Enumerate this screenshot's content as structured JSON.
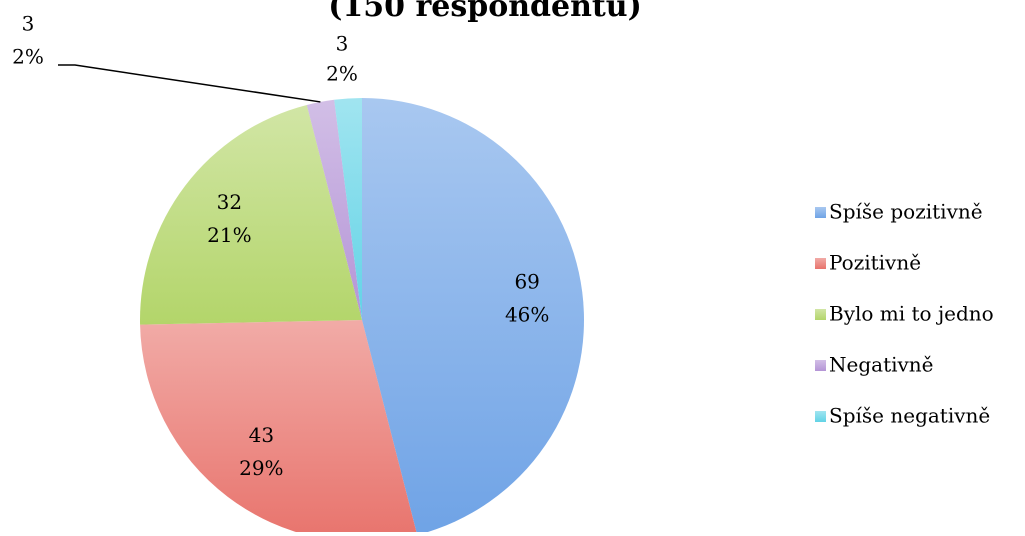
{
  "chart_data": {
    "type": "pie",
    "title": "(150 respondentů)",
    "categories": [
      "Spíše pozitivně",
      "Pozitivně",
      "Bylo mi to jedno",
      "Negativně",
      "Spíše negativně"
    ],
    "values": [
      69,
      43,
      32,
      3,
      3
    ],
    "percent_labels": [
      "46%",
      "29%",
      "21%",
      "2%",
      "2%"
    ],
    "colors": [
      "#6fa3e6",
      "#e8736c",
      "#b3d56a",
      "#b494d6",
      "#62d3e6"
    ],
    "legend": "right"
  }
}
